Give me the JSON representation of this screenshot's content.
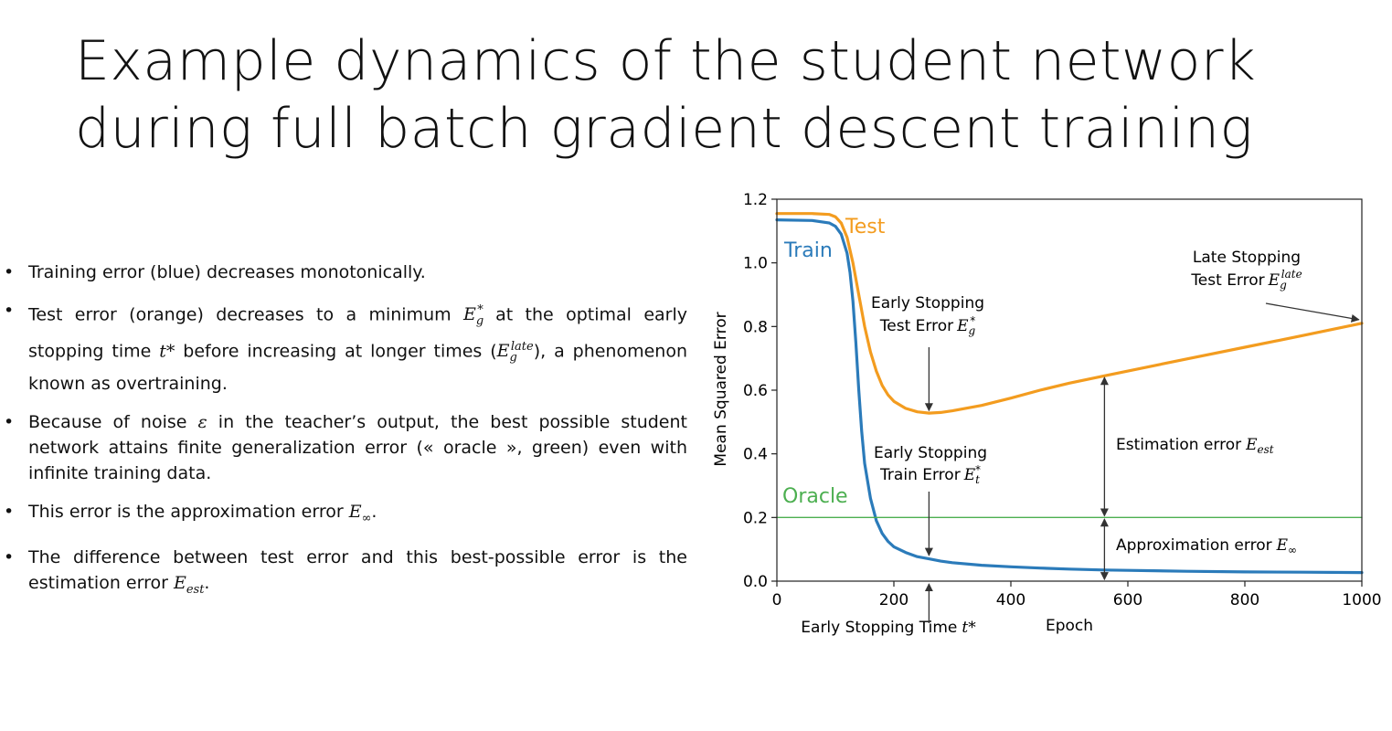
{
  "slide": {
    "title_line1": "Example dynamics of the student network",
    "title_line2": "during full batch gradient descent training"
  },
  "bullets": [
    {
      "bullet": "•",
      "parts": [
        "Training error (blue) decreases monotonically."
      ]
    },
    {
      "bullet": "•",
      "parts": [
        "Test error (orange) decreases to a minimum ",
        "E",
        "g",
        "*",
        " at the optimal early stopping time ",
        "t*",
        " before increasing at longer times (",
        "E",
        "g",
        "late",
        "), a phenomenon known as overtraining."
      ]
    },
    {
      "bullet": "•",
      "parts": [
        "Because of noise ",
        "ε",
        " in the teacher’s output, the best possible student network attains finite generalization error (« oracle », green) even with infinite training data."
      ]
    },
    {
      "bullet": "•",
      "parts": [
        "This error is the approximation error ",
        "E",
        "∞",
        "."
      ]
    },
    {
      "bullet": "•",
      "parts": [
        "The difference between test error and this best-possible error is the estimation error ",
        "E",
        "est",
        "."
      ]
    }
  ],
  "chart_data": {
    "type": "line",
    "xlabel": "Epoch",
    "ylabel": "Mean Squared Error",
    "xlim": [
      0,
      1000
    ],
    "ylim": [
      0,
      1.2
    ],
    "xticks": [
      0,
      200,
      400,
      600,
      800,
      1000
    ],
    "xtick_labels": [
      "0",
      "200",
      "400",
      "600",
      "800",
      "1000"
    ],
    "yticks": [
      0.0,
      0.2,
      0.4,
      0.6,
      0.8,
      1.0,
      1.2
    ],
    "ytick_labels": [
      "0.0",
      "0.2",
      "0.4",
      "0.6",
      "0.8",
      "1.0",
      "1.2"
    ],
    "series": [
      {
        "name": "Test",
        "color": "#f39c1f",
        "x": [
          0,
          60,
          90,
          100,
          110,
          120,
          130,
          140,
          150,
          160,
          170,
          180,
          190,
          200,
          220,
          240,
          260,
          280,
          300,
          350,
          400,
          450,
          500,
          560,
          600,
          700,
          800,
          900,
          1000
        ],
        "y": [
          1.155,
          1.155,
          1.152,
          1.145,
          1.125,
          1.08,
          1.0,
          0.9,
          0.8,
          0.72,
          0.66,
          0.615,
          0.585,
          0.565,
          0.543,
          0.532,
          0.528,
          0.53,
          0.535,
          0.552,
          0.575,
          0.6,
          0.622,
          0.645,
          0.66,
          0.698,
          0.735,
          0.772,
          0.81
        ]
      },
      {
        "name": "Train",
        "color": "#2b7bba",
        "x": [
          0,
          60,
          90,
          100,
          110,
          120,
          125,
          130,
          135,
          140,
          145,
          150,
          160,
          170,
          180,
          190,
          200,
          220,
          240,
          260,
          280,
          300,
          350,
          400,
          450,
          500,
          560,
          600,
          700,
          800,
          900,
          1000
        ],
        "y": [
          1.135,
          1.133,
          1.125,
          1.115,
          1.09,
          1.03,
          0.97,
          0.88,
          0.75,
          0.6,
          0.47,
          0.37,
          0.26,
          0.19,
          0.15,
          0.125,
          0.108,
          0.09,
          0.077,
          0.07,
          0.063,
          0.058,
          0.05,
          0.045,
          0.041,
          0.038,
          0.035,
          0.034,
          0.031,
          0.029,
          0.028,
          0.027
        ]
      },
      {
        "name": "Oracle",
        "color": "#4caf50",
        "x": [
          0,
          1000
        ],
        "y": [
          0.2,
          0.2
        ]
      }
    ],
    "annotations": {
      "test_label": "Test",
      "train_label": "Train",
      "oracle_label": "Oracle",
      "early_test_line1": "Early Stopping",
      "early_test_line2": "Test Error",
      "early_test_sym": "E",
      "early_test_sub": "g",
      "early_test_sup": "*",
      "early_train_line1": "Early Stopping",
      "early_train_line2": "Train Error",
      "early_train_sym": "E",
      "early_train_sub": "t",
      "early_train_sup": "*",
      "late_line1": "Late Stopping",
      "late_line2": "Test Error",
      "late_sym": "E",
      "late_sub": "g",
      "late_sup": "late",
      "estimation": "Estimation error",
      "estimation_sym": "E",
      "estimation_sub": "est",
      "approximation": "Approximation error",
      "approximation_sym": "E",
      "approximation_sub": "∞",
      "early_time": "Early Stopping Time",
      "early_time_sym": "t*"
    },
    "early_stopping_epoch": 260,
    "bracket_epoch": 560
  }
}
